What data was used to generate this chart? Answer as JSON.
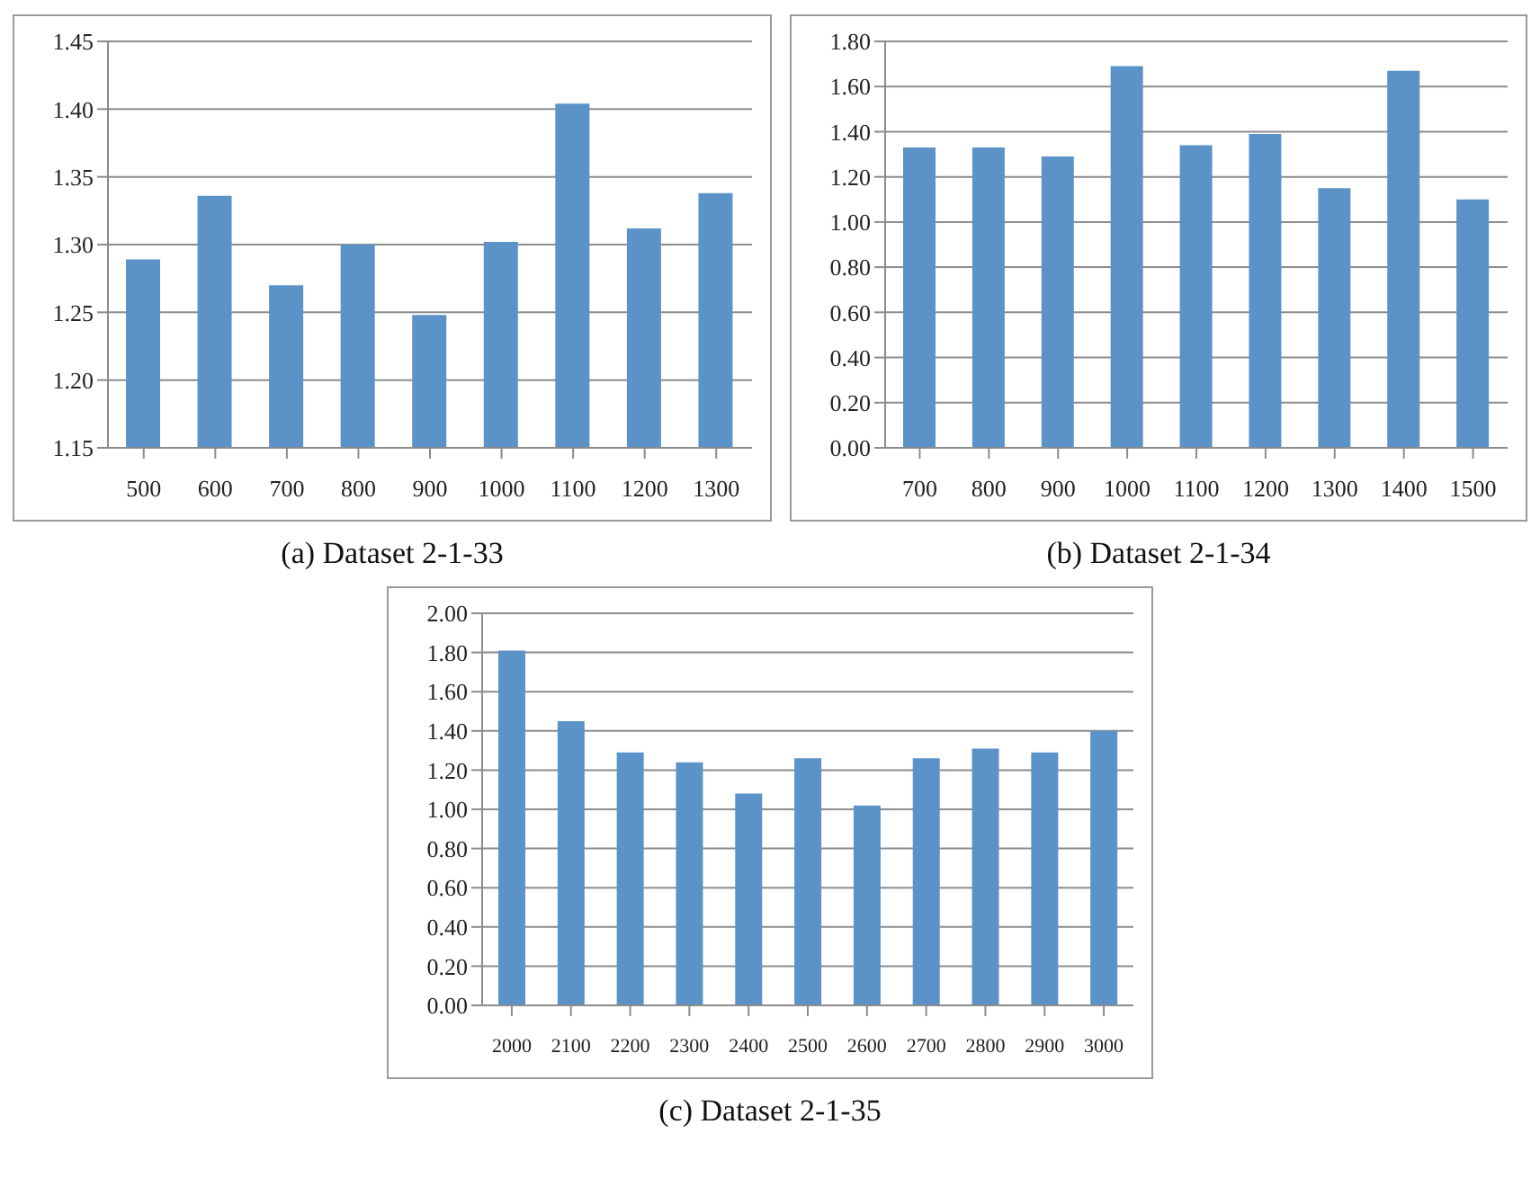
{
  "chart_data": [
    {
      "type": "bar",
      "title": "(a)  Dataset 2-1-33",
      "categories": [
        "500",
        "600",
        "700",
        "800",
        "900",
        "1000",
        "1100",
        "1200",
        "1300"
      ],
      "values": [
        1.289,
        1.336,
        1.27,
        1.3,
        1.248,
        1.302,
        1.404,
        1.312,
        1.338
      ],
      "color": "#5b93c8",
      "ylim": [
        1.15,
        1.45
      ],
      "yticks": [
        {
          "value": 1.15,
          "label": "1.15"
        },
        {
          "value": 1.2,
          "label": "1.20"
        },
        {
          "value": 1.25,
          "label": "1.25"
        },
        {
          "value": 1.3,
          "label": "1.30"
        },
        {
          "value": 1.35,
          "label": "1.35"
        },
        {
          "value": 1.4,
          "label": "1.40"
        },
        {
          "value": 1.45,
          "label": "1.45"
        }
      ],
      "grid": "y"
    },
    {
      "type": "bar",
      "title": "(b)  Dataset 2-1-34",
      "categories": [
        "700",
        "800",
        "900",
        "1000",
        "1100",
        "1200",
        "1300",
        "1400",
        "1500"
      ],
      "values": [
        1.33,
        1.33,
        1.29,
        1.69,
        1.34,
        1.39,
        1.15,
        1.67,
        1.1
      ],
      "color": "#5b93c8",
      "ylim": [
        0,
        1.8
      ],
      "yticks": [
        {
          "value": 0,
          "label": "0.00"
        },
        {
          "value": 0.2,
          "label": "0.20"
        },
        {
          "value": 0.4,
          "label": "0.40"
        },
        {
          "value": 0.6,
          "label": "0.60"
        },
        {
          "value": 0.8,
          "label": "0.80"
        },
        {
          "value": 1,
          "label": "1.00"
        },
        {
          "value": 1.2,
          "label": "1.20"
        },
        {
          "value": 1.4,
          "label": "1.40"
        },
        {
          "value": 1.6,
          "label": "1.60"
        },
        {
          "value": 1.8,
          "label": "1.80"
        }
      ],
      "grid": "y"
    },
    {
      "type": "bar",
      "title": "(c)  Dataset 2-1-35",
      "categories": [
        "2000",
        "2100",
        "2200",
        "2300",
        "2400",
        "2500",
        "2600",
        "2700",
        "2800",
        "2900",
        "3000"
      ],
      "values": [
        1.81,
        1.45,
        1.29,
        1.24,
        1.08,
        1.26,
        1.02,
        1.26,
        1.31,
        1.29,
        1.4
      ],
      "color": "#5b93c8",
      "ylim": [
        0,
        2
      ],
      "yticks": [
        {
          "value": 0,
          "label": "0.00"
        },
        {
          "value": 0.2,
          "label": "0.20"
        },
        {
          "value": 0.4,
          "label": "0.40"
        },
        {
          "value": 0.6,
          "label": "0.60"
        },
        {
          "value": 0.8,
          "label": "0.80"
        },
        {
          "value": 1,
          "label": "1.00"
        },
        {
          "value": 1.2,
          "label": "1.20"
        },
        {
          "value": 1.4,
          "label": "1.40"
        },
        {
          "value": 1.6,
          "label": "1.60"
        },
        {
          "value": 1.8,
          "label": "1.80"
        },
        {
          "value": 2,
          "label": "2.00"
        }
      ],
      "grid": "y"
    }
  ]
}
